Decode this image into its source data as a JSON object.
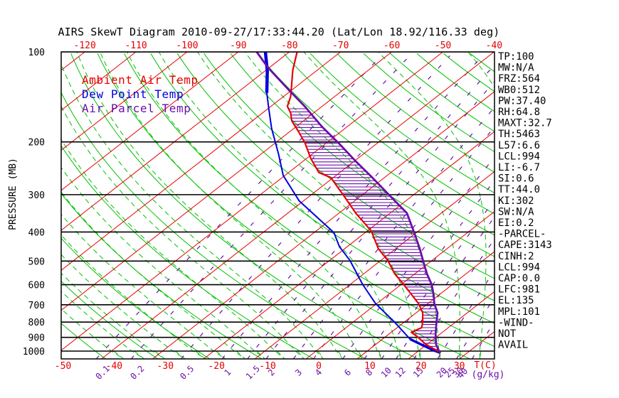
{
  "title": "AIRS SkewT Diagram 2010-09-27/17:33:44.20 (Lat/Lon 18.92/116.33 deg)",
  "colors": {
    "red": "#e60000",
    "green": "#00c000",
    "blue": "#0000dd",
    "purple": "#6a0fa8",
    "black": "#000000"
  },
  "legend": [
    {
      "label": "Ambient Air Temp",
      "color": "#e60000"
    },
    {
      "label": "Dew Point Temp",
      "color": "#0000dd"
    },
    {
      "label": "Air Parcel Temp",
      "color": "#6a0fa8"
    }
  ],
  "axes": {
    "pressure_label": "PRESSURE (MB)",
    "pressure_ticks": [
      100,
      200,
      300,
      400,
      500,
      600,
      700,
      800,
      900,
      1000
    ],
    "top_temp_ticks": [
      -120,
      -110,
      -100,
      -90,
      -80,
      -70,
      -60,
      -50,
      -40
    ],
    "bottom_temp_ticks": [
      -50,
      -40,
      -30,
      -20,
      -10,
      0,
      10,
      20,
      30
    ],
    "temp_unit_label": "T(C)",
    "mixing_unit_label": "(g/kg)",
    "extra_mixing_label": "40",
    "mixing_ratio_ticks": [
      0.1,
      0.2,
      0.5,
      1,
      1.5,
      2,
      3,
      4,
      6,
      8,
      10,
      12,
      15,
      20,
      25,
      30
    ]
  },
  "stability_params": [
    "TP:100",
    "MW:N/A",
    "FRZ:564",
    "WB0:512",
    "PW:37.40",
    "RH:64.8",
    "MAXT:32.7",
    "TH:5463",
    "L57:6.6",
    "LCL:994",
    "LI:-6.7",
    "SI:0.6",
    "TT:44.0",
    "KI:302",
    "SW:N/A",
    "EI:0.2",
    "-PARCEL-",
    "CAPE:3143",
    "CINH:2",
    "LCL:994",
    "CAP:0.0",
    "LFC:981",
    "EL:135",
    "MPL:101",
    "-WIND-",
    "NOT",
    "AVAIL"
  ],
  "chart_data": {
    "type": "line",
    "variant": "skew-t-log-p",
    "title": "AIRS SkewT Diagram 2010-09-27/17:33:44.20 (Lat/Lon 18.92/116.33 deg)",
    "xlabel": "T(C)",
    "ylabel": "PRESSURE (MB)",
    "ylim_mb": [
      100,
      1063
    ],
    "x_bottom_range_C": [
      -50,
      34
    ],
    "grid": true,
    "legend_position": "top-left-inside",
    "pressure_levels_mb": [
      100,
      200,
      300,
      400,
      500,
      600,
      700,
      800,
      900,
      1000
    ],
    "background_lines": {
      "isotherms_C": {
        "from": -160,
        "to": 40,
        "step": 10
      },
      "dry_adiabats_K": {
        "from": 220,
        "to": 450,
        "step": 10
      },
      "moist_adiabats_C": {
        "from": -40,
        "to": 44,
        "step": 4
      },
      "mixing_ratio_g_kg": [
        0.1,
        0.2,
        0.5,
        1,
        1.5,
        2,
        3,
        4,
        6,
        8,
        10,
        12,
        15,
        20,
        25,
        30
      ]
    },
    "cape_hatch_between": [
      "Ambient Air Temp",
      "Air Parcel Temp"
    ],
    "series": [
      {
        "name": "Ambient Air Temp",
        "points_p_t": [
          [
            100,
            -78.5
          ],
          [
            115,
            -74.8
          ],
          [
            129,
            -71.3
          ],
          [
            141,
            -68.6
          ],
          [
            152,
            -66.8
          ],
          [
            160,
            -64.5
          ],
          [
            170,
            -62.3
          ],
          [
            185,
            -58.2
          ],
          [
            202,
            -54.1
          ],
          [
            227,
            -49.2
          ],
          [
            253,
            -44.1
          ],
          [
            263,
            -40.5
          ],
          [
            302,
            -33.5
          ],
          [
            346,
            -26.7
          ],
          [
            397,
            -19.2
          ],
          [
            455,
            -13.4
          ],
          [
            497,
            -8.7
          ],
          [
            551,
            -4.0
          ],
          [
            598,
            0.4
          ],
          [
            648,
            4.6
          ],
          [
            693,
            8.1
          ],
          [
            745,
            11.3
          ],
          [
            800,
            13.6
          ],
          [
            835,
            14.8
          ],
          [
            865,
            13.9
          ],
          [
            895,
            16.2
          ],
          [
            950,
            19.8
          ],
          [
            1012,
            24.8
          ]
        ]
      },
      {
        "name": "Dew Point Temp",
        "points_p_t": [
          [
            100,
            -84.7
          ],
          [
            116,
            -79.5
          ],
          [
            137,
            -74.2
          ],
          [
            152,
            -70.5
          ],
          [
            180,
            -64.4
          ],
          [
            220,
            -56.5
          ],
          [
            259,
            -50.3
          ],
          [
            315,
            -40.8
          ],
          [
            402,
            -26.1
          ],
          [
            448,
            -21.5
          ],
          [
            497,
            -16.1
          ],
          [
            598,
            -7.6
          ],
          [
            693,
            -0.3
          ],
          [
            800,
            8.1
          ],
          [
            912,
            15.4
          ],
          [
            990,
            22.4
          ],
          [
            1012,
            24.6
          ]
        ],
        "thick_top_points": 3,
        "thick_bottom_points": 3
      },
      {
        "name": "Air Parcel Temp",
        "points_p_t": [
          [
            100,
            -86.4
          ],
          [
            113,
            -80.2
          ],
          [
            135,
            -70.2
          ],
          [
            152,
            -63.4
          ],
          [
            178,
            -54.9
          ],
          [
            202,
            -47.5
          ],
          [
            232,
            -39.7
          ],
          [
            263,
            -32.4
          ],
          [
            302,
            -24.5
          ],
          [
            346,
            -16.7
          ],
          [
            402,
            -10.4
          ],
          [
            455,
            -5.3
          ],
          [
            497,
            -1.8
          ],
          [
            551,
            2.3
          ],
          [
            598,
            5.9
          ],
          [
            648,
            8.9
          ],
          [
            693,
            11.2
          ],
          [
            745,
            14.2
          ],
          [
            800,
            16.3
          ],
          [
            877,
            19.1
          ],
          [
            950,
            21.8
          ],
          [
            1008,
            24.4
          ]
        ]
      }
    ]
  }
}
